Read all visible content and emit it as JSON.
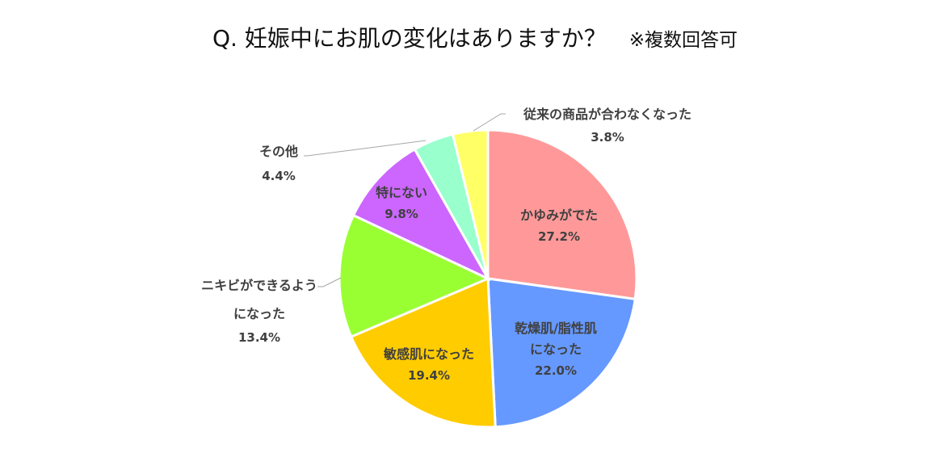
{
  "title": "Q. 妊娠中にお肌の変化はありますか？",
  "note": "※複数回答可",
  "chart_data": {
    "type": "pie",
    "title": "Q. 妊娠中にお肌の変化はありますか？ ※複数回答可",
    "start_angle": "12 o'clock, clockwise",
    "categories": [
      "かゆみがでた",
      "乾燥肌/脂性肌になった",
      "敏感肌になった",
      "ニキビができるようになった",
      "特にない",
      "その他",
      "従来の商品が合わなくなった"
    ],
    "values": [
      27.2,
      22.0,
      19.4,
      13.4,
      9.8,
      4.4,
      3.8
    ],
    "colors": [
      "#FF9999",
      "#6699FF",
      "#FFCC00",
      "#99FF33",
      "#CC66FF",
      "#99FFCC",
      "#FFFF66"
    ],
    "unit": "%"
  },
  "labels": [
    {
      "line1": "かゆみがでた",
      "line2": "",
      "pct": "27.2%"
    },
    {
      "line1": "乾燥肌/脂性肌",
      "line2": "になった",
      "pct": "22.0%"
    },
    {
      "line1": "敏感肌になった",
      "line2": "",
      "pct": "19.4%"
    },
    {
      "line1": "ニキビができるよう",
      "line2": "になった",
      "pct": "13.4%"
    },
    {
      "line1": "特にない",
      "line2": "",
      "pct": "9.8%"
    },
    {
      "line1": "その他",
      "line2": "",
      "pct": "4.4%"
    },
    {
      "line1": "従来の商品が合わなくなった",
      "line2": "",
      "pct": "3.8%"
    }
  ]
}
